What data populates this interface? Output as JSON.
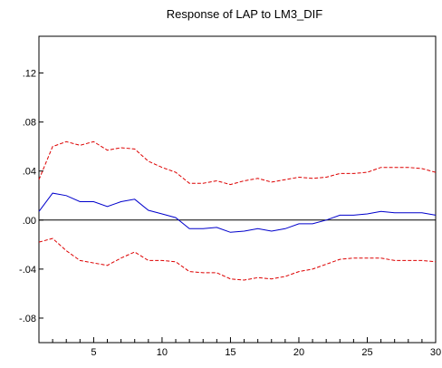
{
  "chart_data": {
    "type": "line",
    "title": "Response of LAP to LM3_DIF",
    "xlabel": "",
    "ylabel": "",
    "xlim": [
      1,
      30
    ],
    "ylim": [
      -0.1,
      0.15
    ],
    "x_ticks": [
      5,
      10,
      15,
      20,
      25,
      30
    ],
    "y_ticks": [
      ".12",
      ".08",
      ".04",
      ".00",
      "-.04",
      "-.08"
    ],
    "y_tick_values": [
      0.12,
      0.08,
      0.04,
      0.0,
      -0.04,
      -0.08
    ],
    "zero_line": true,
    "grid": false,
    "legend": "none",
    "x": [
      1,
      2,
      3,
      4,
      5,
      6,
      7,
      8,
      9,
      10,
      11,
      12,
      13,
      14,
      15,
      16,
      17,
      18,
      19,
      20,
      21,
      22,
      23,
      24,
      25,
      26,
      27,
      28,
      29,
      30
    ],
    "series": [
      {
        "style": "solid",
        "color": "#0000cc",
        "values": [
          0.007,
          0.022,
          0.02,
          0.015,
          0.015,
          0.011,
          0.015,
          0.017,
          0.008,
          0.005,
          0.002,
          -0.007,
          -0.007,
          -0.006,
          -0.01,
          -0.009,
          -0.007,
          -0.009,
          -0.007,
          -0.003,
          -0.003,
          0.0,
          0.004,
          0.004,
          0.005,
          0.007,
          0.006,
          0.006,
          0.006,
          0.004
        ]
      },
      {
        "style": "dashed",
        "color": "#dd0000",
        "values": [
          0.033,
          0.06,
          0.064,
          0.061,
          0.064,
          0.057,
          0.059,
          0.058,
          0.048,
          0.043,
          0.039,
          0.03,
          0.03,
          0.032,
          0.029,
          0.032,
          0.034,
          0.031,
          0.033,
          0.035,
          0.034,
          0.035,
          0.038,
          0.038,
          0.039,
          0.043,
          0.043,
          0.043,
          0.042,
          0.039
        ]
      },
      {
        "style": "dashed",
        "color": "#dd0000",
        "values": [
          -0.018,
          -0.015,
          -0.025,
          -0.033,
          -0.035,
          -0.037,
          -0.031,
          -0.026,
          -0.033,
          -0.033,
          -0.034,
          -0.042,
          -0.043,
          -0.043,
          -0.048,
          -0.049,
          -0.047,
          -0.048,
          -0.046,
          -0.042,
          -0.04,
          -0.036,
          -0.032,
          -0.031,
          -0.031,
          -0.031,
          -0.033,
          -0.033,
          -0.033,
          -0.034
        ]
      }
    ]
  }
}
